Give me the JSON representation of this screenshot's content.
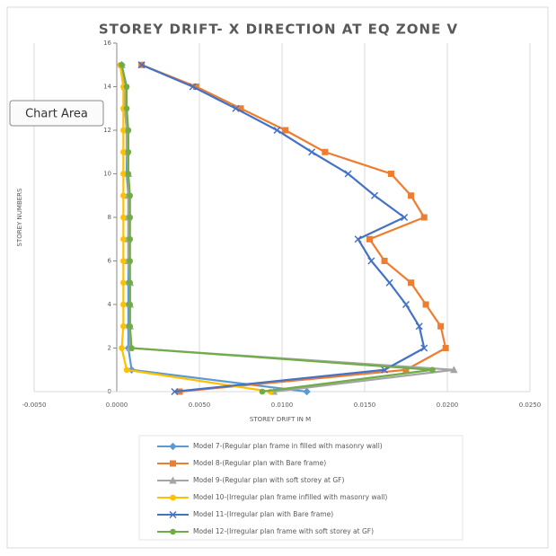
{
  "chart_data": {
    "type": "line",
    "title": "STOREY DRIFT- X DIRECTION AT EQ ZONE V",
    "x_label": "STOREY DRIFT IN M",
    "y_label": "STOREY NUMBERS",
    "tooltip": "Chart Area",
    "y": [
      0,
      1,
      2,
      3,
      4,
      5,
      6,
      7,
      8,
      9,
      10,
      11,
      12,
      13,
      14,
      15
    ],
    "series": [
      {
        "name": "Model 7-(Regular plan frame in filled with masonry wall)",
        "color": "#5b9bd5",
        "marker": "diamond",
        "values": [
          0.0115,
          0.0009,
          0.0007,
          0.0007,
          0.0007,
          0.0007,
          0.0007,
          0.0007,
          0.0007,
          0.0007,
          0.0006,
          0.0006,
          0.0006,
          0.0005,
          0.0005,
          0.0003
        ]
      },
      {
        "name": "Model 8-(Regular plan with Bare frame)",
        "color": "#ed7d31",
        "marker": "square",
        "values": [
          0.0038,
          0.0175,
          0.0199,
          0.0196,
          0.0187,
          0.0178,
          0.0162,
          0.0153,
          0.0186,
          0.0178,
          0.0166,
          0.0126,
          0.0102,
          0.0075,
          0.0048,
          0.0015
        ]
      },
      {
        "name": "Model 9-(Regular plan with soft storey at GF)",
        "color": "#a5a5a5",
        "marker": "triangle",
        "values": [
          0.0095,
          0.0204,
          0.0008,
          0.0008,
          0.0008,
          0.0008,
          0.0007,
          0.0007,
          0.0007,
          0.0007,
          0.0007,
          0.0006,
          0.0006,
          0.0005,
          0.0005,
          0.0003
        ]
      },
      {
        "name": "Model 10-(Irregular plan frame infilled  with masonry wall)",
        "color": "#ffc000",
        "marker": "circle",
        "values": [
          0.0093,
          0.0006,
          0.0003,
          0.0004,
          0.0004,
          0.0004,
          0.0004,
          0.0004,
          0.0004,
          0.0004,
          0.0004,
          0.0004,
          0.0004,
          0.0004,
          0.0004,
          0.0002
        ]
      },
      {
        "name": "Model 11-(Irregular plan with Bare frame)",
        "color": "#4472c4",
        "marker": "cross",
        "values": [
          0.0035,
          0.0162,
          0.0186,
          0.0183,
          0.0175,
          0.0165,
          0.0154,
          0.0146,
          0.0174,
          0.0156,
          0.014,
          0.0118,
          0.0097,
          0.0072,
          0.0046,
          0.0015
        ]
      },
      {
        "name": "Model 12-(Irregular plan frame with soft storey at GF)",
        "color": "#70ad47",
        "marker": "circle",
        "values": [
          0.0088,
          0.0191,
          0.0009,
          0.0008,
          0.0008,
          0.0008,
          0.0008,
          0.0008,
          0.0008,
          0.0008,
          0.0007,
          0.0007,
          0.0007,
          0.0006,
          0.0006,
          0.0003
        ]
      }
    ],
    "xlim": [
      -0.005,
      0.025
    ],
    "xticks": [
      {
        "value": -0.005,
        "label": "-0.0050"
      },
      {
        "value": 0,
        "label": "0.0000"
      },
      {
        "value": 0.005,
        "label": "0.0050"
      },
      {
        "value": 0.01,
        "label": "0.0100"
      },
      {
        "value": 0.015,
        "label": "0.0150"
      },
      {
        "value": 0.02,
        "label": "0.0200"
      },
      {
        "value": 0.025,
        "label": "0.0250"
      }
    ],
    "ylim": [
      0,
      16
    ],
    "yticks": [
      0,
      2,
      4,
      6,
      8,
      10,
      12,
      14,
      16
    ],
    "grid": true,
    "legend": "bottom"
  }
}
